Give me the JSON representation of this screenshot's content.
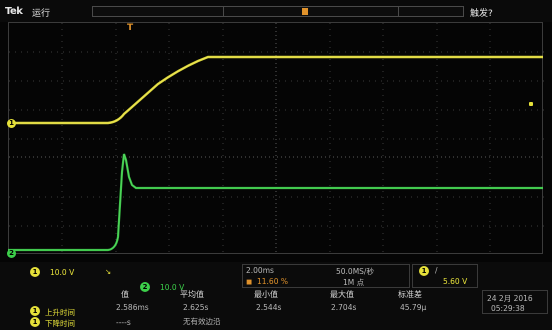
{
  "topbar": {
    "brand": "Tek",
    "run_status": "运行",
    "trigger_status": "触发?"
  },
  "markers": {
    "trigger_position": "T",
    "ch1": "1",
    "ch2": "2"
  },
  "channels": [
    {
      "number": "1",
      "scale": "10.0 V",
      "color": "#e6e13a"
    },
    {
      "number": "2",
      "scale": "10.0 V",
      "color": "#3ccf4a"
    }
  ],
  "timebase": {
    "horizontal_scale": "2.00ms",
    "sample_rate": "50.0MS/秒",
    "position": "11.60 %",
    "record_length": "1M 点"
  },
  "trigger": {
    "source": "1",
    "slope": "/",
    "level": "5.60 V"
  },
  "measurements": {
    "headers": [
      "值",
      "平均值",
      "最小值",
      "最大值",
      "标准差"
    ],
    "rows": [
      {
        "channel": "1",
        "name": "上升时间",
        "value": "2.586ms",
        "mean": "2.625s",
        "min": "2.544s",
        "max": "2.704s",
        "std": "45.79μ"
      },
      {
        "channel": "1",
        "name": "下降时间",
        "value": "----s",
        "mean": "无有效边沿",
        "min": "",
        "max": "",
        "std": ""
      }
    ]
  },
  "datetime": {
    "date": "24 2月 2016",
    "time": "05:29:38"
  },
  "colors": {
    "ch1": "#e6e13a",
    "ch2": "#3ccf4a",
    "trigger": "#e0922b"
  }
}
